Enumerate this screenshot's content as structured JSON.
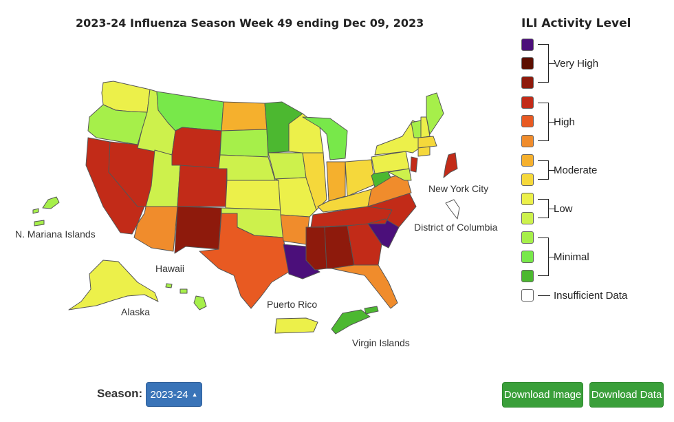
{
  "title": "2023-24 Influenza Season Week 49 ending Dec 09, 2023",
  "legend": {
    "title": "ILI Activity Level",
    "colors": [
      "#4b0f7a",
      "#5c0f00",
      "#8e1a0c",
      "#c22b18",
      "#e85a22",
      "#f08c2c",
      "#f5b02d",
      "#f5d83b",
      "#ecf04a",
      "#cdf14c",
      "#a6ef4a",
      "#78e84a",
      "#4cb830",
      "#ffffff"
    ],
    "groups": {
      "very_high": "Very High",
      "high": "High",
      "moderate": "Moderate",
      "low": "Low",
      "minimal": "Minimal",
      "insufficient": "Insufficient Data"
    }
  },
  "map_labels": {
    "new_york_city": "New York City",
    "district_of_columbia": "District of Columbia",
    "mariana": "N. Mariana Islands",
    "hawaii": "Hawaii",
    "alaska": "Alaska",
    "puerto_rico": "Puerto Rico",
    "virgin_islands": "Virgin Islands"
  },
  "controls": {
    "season_label": "Season:",
    "season_value": "2023-24",
    "download_image": "Download Image",
    "download_data": "Download Data"
  }
}
